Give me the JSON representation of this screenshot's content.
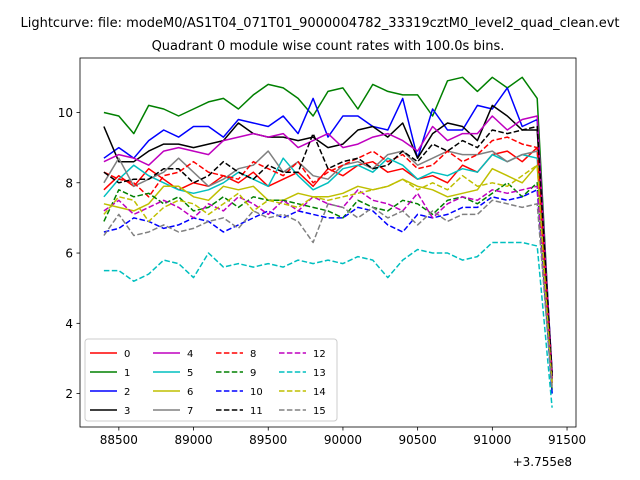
{
  "chart_data": {
    "type": "line",
    "title_file": "Lightcurve: file: modeM0/AS1T04_071T01_9000004782_33319cztM0_level2_quad_clean.evt",
    "title": "Quadrant 0 module wise count rates with 100.0s bins.",
    "xlabel": "",
    "ylabel": "",
    "x_offset_label": "+3.755e8",
    "xlim": [
      88240,
      91560
    ],
    "ylim": [
      1.05,
      11.55
    ],
    "xticks": [
      88500,
      89000,
      89500,
      90000,
      90500,
      91000,
      91500
    ],
    "yticks": [
      2,
      4,
      6,
      8,
      10
    ],
    "x": [
      88400,
      88500,
      88600,
      88700,
      88800,
      88900,
      89000,
      89100,
      89200,
      89300,
      89400,
      89500,
      89600,
      89700,
      89800,
      89900,
      90000,
      90100,
      90200,
      90300,
      90400,
      90500,
      90600,
      90700,
      90800,
      90900,
      91000,
      91100,
      91200,
      91300,
      91400
    ],
    "legend_placement": "lower-left",
    "series": [
      {
        "name": "0",
        "color": "#ff0000",
        "dash": false,
        "values": [
          7.8,
          8.2,
          7.9,
          8.4,
          8.1,
          7.8,
          8.0,
          7.9,
          8.2,
          8.0,
          8.3,
          7.9,
          8.1,
          8.3,
          7.9,
          8.4,
          8.2,
          8.5,
          8.6,
          8.3,
          8.4,
          8.1,
          8.2,
          8.0,
          8.5,
          8.3,
          8.8,
          8.9,
          8.6,
          9.0,
          2.3
        ]
      },
      {
        "name": "1",
        "color": "#008000",
        "dash": false,
        "values": [
          10.0,
          9.9,
          9.4,
          10.2,
          10.1,
          9.9,
          10.1,
          10.3,
          10.4,
          10.1,
          10.5,
          10.8,
          10.7,
          10.4,
          9.9,
          10.6,
          10.7,
          10.1,
          10.8,
          10.6,
          10.5,
          10.5,
          9.9,
          10.9,
          11.0,
          10.6,
          11.0,
          10.7,
          11.0,
          10.4,
          2.4
        ]
      },
      {
        "name": "2",
        "color": "#0000ff",
        "dash": false,
        "values": [
          8.7,
          9.0,
          8.7,
          9.2,
          9.5,
          9.3,
          9.6,
          9.6,
          9.3,
          9.8,
          9.7,
          9.6,
          9.9,
          9.4,
          10.4,
          9.3,
          9.9,
          9.9,
          9.6,
          9.5,
          10.4,
          8.7,
          10.1,
          9.5,
          9.5,
          10.2,
          10.1,
          10.7,
          9.6,
          9.8,
          2.6
        ]
      },
      {
        "name": "3",
        "color": "#000000",
        "dash": false,
        "values": [
          9.6,
          8.6,
          8.6,
          8.9,
          9.1,
          9.1,
          9.0,
          9.1,
          9.2,
          9.7,
          9.4,
          9.3,
          9.3,
          9.2,
          9.3,
          9.0,
          9.1,
          9.5,
          9.6,
          9.3,
          9.7,
          8.7,
          9.4,
          9.7,
          9.6,
          9.2,
          10.2,
          9.9,
          9.5,
          9.5,
          2.6
        ]
      },
      {
        "name": "4",
        "color": "#bf00bf",
        "dash": false,
        "values": [
          8.6,
          8.8,
          8.7,
          8.5,
          8.9,
          9.0,
          8.9,
          8.8,
          9.2,
          9.3,
          9.4,
          9.3,
          9.4,
          9.0,
          9.2,
          9.4,
          9.0,
          9.1,
          9.3,
          9.4,
          9.2,
          8.9,
          9.6,
          9.2,
          9.4,
          9.4,
          9.9,
          9.5,
          9.8,
          9.9,
          2.5
        ]
      },
      {
        "name": "5",
        "color": "#00bfbf",
        "dash": false,
        "values": [
          7.6,
          8.1,
          8.5,
          8.2,
          8.0,
          7.8,
          7.7,
          7.8,
          8.0,
          8.3,
          8.1,
          7.9,
          8.7,
          8.2,
          7.8,
          8.0,
          8.4,
          8.5,
          8.3,
          8.7,
          8.5,
          8.1,
          8.3,
          8.2,
          8.4,
          8.3,
          8.8,
          8.6,
          8.8,
          8.7,
          2.0
        ]
      },
      {
        "name": "6",
        "color": "#bfbf00",
        "dash": false,
        "values": [
          7.4,
          7.3,
          7.2,
          7.4,
          7.9,
          7.9,
          7.6,
          7.5,
          7.9,
          7.8,
          7.9,
          7.5,
          7.5,
          7.7,
          7.6,
          7.6,
          7.7,
          7.9,
          7.8,
          7.9,
          8.1,
          7.9,
          7.8,
          7.6,
          7.7,
          7.8,
          8.4,
          8.2,
          8.0,
          8.5,
          2.3
        ]
      },
      {
        "name": "7",
        "color": "#808080",
        "dash": false,
        "values": [
          8.0,
          8.7,
          7.9,
          8.1,
          8.3,
          8.7,
          8.3,
          7.9,
          8.1,
          8.4,
          8.5,
          8.9,
          8.3,
          8.6,
          8.2,
          8.1,
          8.5,
          8.6,
          8.4,
          8.8,
          8.9,
          8.5,
          8.7,
          8.9,
          8.8,
          8.8,
          8.9,
          8.6,
          8.8,
          8.9,
          2.2
        ]
      },
      {
        "name": "8",
        "color": "#ff0000",
        "dash": true,
        "values": [
          8.3,
          8.1,
          8.0,
          7.6,
          8.2,
          8.3,
          8.6,
          8.3,
          8.2,
          8.1,
          8.6,
          8.4,
          8.2,
          8.6,
          8.0,
          8.3,
          8.5,
          8.7,
          8.9,
          8.6,
          8.8,
          8.4,
          8.5,
          8.9,
          8.6,
          8.8,
          9.2,
          9.3,
          9.1,
          9.0,
          2.4
        ]
      },
      {
        "name": "9",
        "color": "#008000",
        "dash": true,
        "values": [
          6.9,
          7.8,
          7.6,
          7.7,
          7.4,
          7.6,
          7.2,
          7.3,
          7.6,
          7.3,
          7.6,
          7.5,
          7.5,
          7.4,
          7.3,
          7.2,
          7.0,
          7.5,
          7.3,
          7.2,
          7.5,
          7.4,
          7.1,
          7.5,
          7.6,
          7.4,
          7.7,
          8.0,
          7.6,
          8.0,
          2.1
        ]
      },
      {
        "name": "10",
        "color": "#0000ff",
        "dash": true,
        "values": [
          6.6,
          6.7,
          7.0,
          6.9,
          6.7,
          6.8,
          7.0,
          6.9,
          6.6,
          6.8,
          7.0,
          7.2,
          7.0,
          7.2,
          7.1,
          7.0,
          7.0,
          7.3,
          7.2,
          6.8,
          6.6,
          7.1,
          7.0,
          7.1,
          7.3,
          7.3,
          7.6,
          7.5,
          7.6,
          7.8,
          2.0
        ]
      },
      {
        "name": "11",
        "color": "#000000",
        "dash": true,
        "values": [
          8.3,
          8.0,
          8.1,
          8.1,
          8.4,
          8.4,
          8.0,
          8.2,
          8.6,
          8.3,
          8.1,
          8.5,
          8.3,
          8.3,
          9.4,
          8.4,
          8.6,
          8.7,
          8.4,
          8.5,
          8.9,
          8.6,
          9.1,
          8.9,
          9.2,
          9.0,
          9.5,
          9.4,
          9.5,
          9.6,
          2.5
        ]
      },
      {
        "name": "12",
        "color": "#bf00bf",
        "dash": true,
        "values": [
          7.2,
          7.5,
          7.1,
          7.3,
          7.5,
          7.3,
          7.0,
          7.4,
          7.2,
          7.6,
          7.4,
          7.1,
          7.5,
          7.2,
          7.6,
          7.4,
          7.3,
          7.8,
          7.5,
          7.4,
          7.2,
          7.7,
          7.0,
          7.4,
          7.6,
          7.5,
          7.8,
          7.7,
          7.8,
          7.9,
          2.3
        ]
      },
      {
        "name": "13",
        "color": "#00bfbf",
        "dash": true,
        "values": [
          5.5,
          5.5,
          5.2,
          5.4,
          5.8,
          5.7,
          5.3,
          6.0,
          5.6,
          5.7,
          5.6,
          5.7,
          5.6,
          5.8,
          5.7,
          5.8,
          5.7,
          5.9,
          5.8,
          5.3,
          5.8,
          6.1,
          6.0,
          6.0,
          5.8,
          5.9,
          6.3,
          6.3,
          6.3,
          6.2,
          1.6
        ]
      },
      {
        "name": "14",
        "color": "#bfbf00",
        "dash": true,
        "values": [
          7.1,
          7.6,
          7.5,
          6.9,
          7.3,
          7.5,
          7.4,
          7.1,
          7.4,
          7.7,
          7.2,
          7.5,
          7.4,
          7.3,
          7.6,
          7.5,
          7.6,
          7.7,
          7.8,
          7.9,
          8.1,
          7.8,
          8.0,
          7.8,
          8.2,
          7.9,
          8.0,
          7.9,
          8.2,
          8.5,
          2.2
        ]
      },
      {
        "name": "15",
        "color": "#808080",
        "dash": true,
        "values": [
          6.5,
          7.1,
          6.5,
          6.6,
          6.8,
          6.6,
          6.7,
          6.9,
          7.0,
          6.7,
          7.2,
          7.0,
          7.1,
          6.9,
          6.3,
          7.4,
          7.3,
          7.0,
          7.3,
          7.0,
          7.2,
          6.8,
          7.2,
          6.9,
          7.1,
          7.1,
          7.5,
          7.4,
          7.3,
          7.4,
          2.1
        ]
      }
    ]
  }
}
